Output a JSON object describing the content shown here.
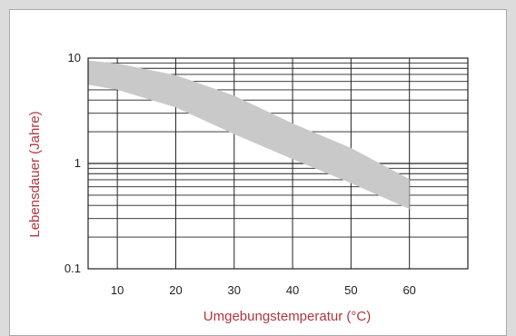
{
  "chart_data": {
    "type": "area",
    "title": "",
    "xlabel": "Umgebungstemperatur (°C)",
    "ylabel": "Lebensdauer (Jahre)",
    "xlim": [
      5,
      70
    ],
    "ylim": [
      0.1,
      10
    ],
    "yscale": "log",
    "grid": true,
    "legend": "none",
    "x_ticks": [
      10,
      20,
      30,
      40,
      50,
      60
    ],
    "x_tick_labels": [
      "10",
      "20",
      "30",
      "40",
      "50",
      "60"
    ],
    "y_ticks": [
      0.1,
      1,
      10
    ],
    "y_tick_labels": [
      "0.1",
      "1",
      "10"
    ],
    "series": [
      {
        "x": [
          5,
          10,
          20,
          30,
          40,
          50,
          60
        ],
        "upper": [
          9.5,
          8.9,
          6.9,
          4.4,
          2.4,
          1.4,
          0.71
        ],
        "lower": [
          5.6,
          5.0,
          3.4,
          1.9,
          1.1,
          0.65,
          0.37
        ]
      }
    ],
    "colors": {
      "band": "#c9c9c9",
      "grid": "#222222",
      "axis_label": "#b1363d",
      "tick_label": "#222222"
    }
  }
}
